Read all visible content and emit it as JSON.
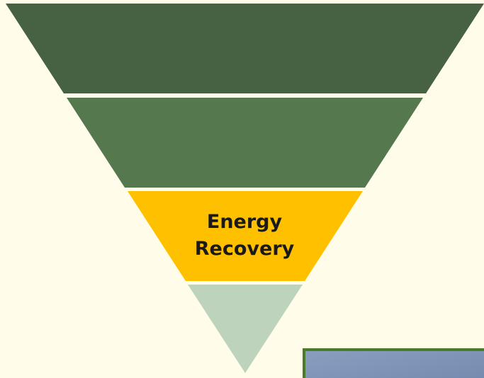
{
  "pyramid": {
    "highlighted_level": {
      "label": "Energy Recovery"
    }
  }
}
